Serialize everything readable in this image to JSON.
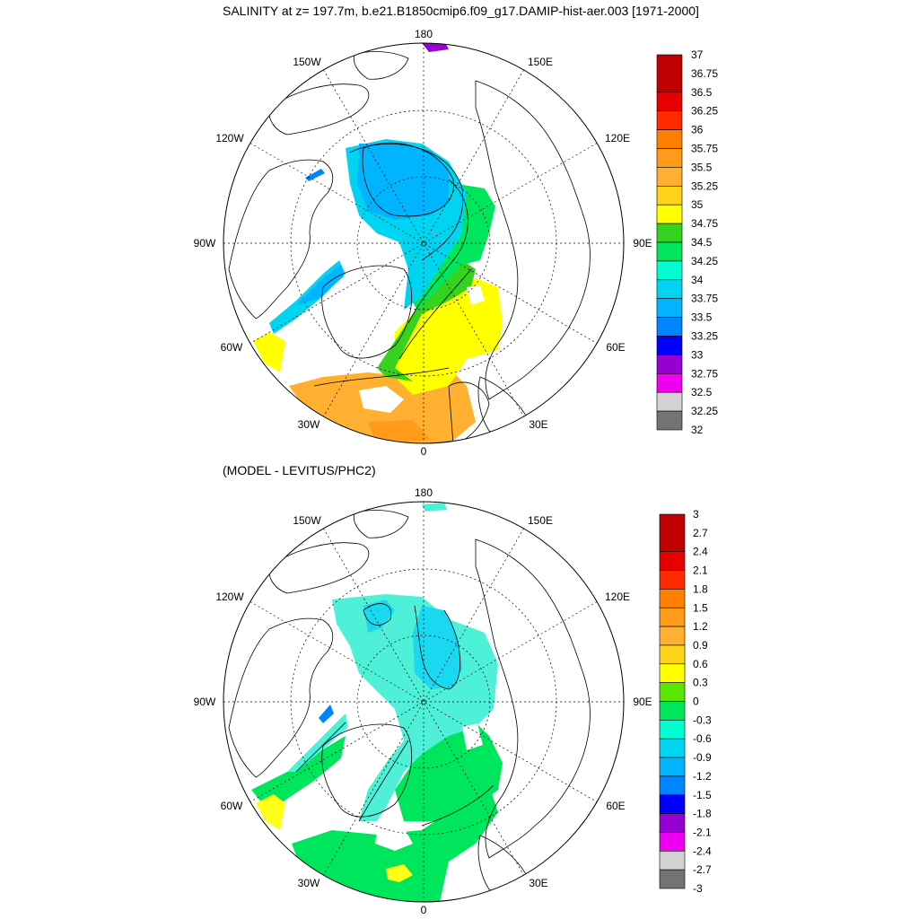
{
  "top_panel": {
    "title": "SALINITY at z= 197.7m, b.e21.B1850cmip6.f09_g17.DAMIP-hist-aer.003 [1971-2000]",
    "lon_labels": {
      "n": "180",
      "nw": "150W",
      "ne": "150E",
      "wnw": "120W",
      "ene": "120E",
      "w": "90W",
      "e": "90E",
      "wsw": "60W",
      "ese": "60E",
      "sw": "30W",
      "se": "30E",
      "s": "0"
    },
    "colorbar": {
      "labels": [
        "37",
        "36.75",
        "36.5",
        "36.25",
        "36",
        "35.75",
        "35.5",
        "35.25",
        "35",
        "34.75",
        "34.5",
        "34.25",
        "34",
        "33.75",
        "33.5",
        "33.25",
        "33",
        "32.75",
        "32.5",
        "32.25",
        "32"
      ],
      "colors": [
        "#c00000",
        "#e80000",
        "#ff2a00",
        "#ff8000",
        "#ff9a1a",
        "#ffb030",
        "#ffd21a",
        "#ffff00",
        "#37d11f",
        "#00e65c",
        "#00ffd0",
        "#00d4f0",
        "#00b4ff",
        "#0084ff",
        "#0000ff",
        "#9600d2",
        "#f000f0",
        "#d2d2d2",
        "#737373"
      ]
    }
  },
  "bottom_panel": {
    "title": "(MODEL - LEVITUS/PHC2)",
    "lon_labels": {
      "n": "180",
      "nw": "150W",
      "ne": "150E",
      "wnw": "120W",
      "ene": "120E",
      "w": "90W",
      "e": "90E",
      "wsw": "60W",
      "ese": "60E",
      "sw": "30W",
      "se": "30E",
      "s": "0"
    },
    "colorbar": {
      "labels": [
        "3",
        "2.7",
        "2.4",
        "2.1",
        "1.8",
        "1.5",
        "1.2",
        "0.9",
        "0.6",
        "0.3",
        "0",
        "-0.3",
        "-0.6",
        "-0.9",
        "-1.2",
        "-1.5",
        "-1.8",
        "-2.1",
        "-2.4",
        "-2.7",
        "-3"
      ],
      "colors": [
        "#c00000",
        "#e80000",
        "#ff2a00",
        "#ff8000",
        "#ff9a1a",
        "#ffb030",
        "#ffd21a",
        "#ffff00",
        "#59e600",
        "#00e65c",
        "#00ffd0",
        "#00d4f0",
        "#00b4ff",
        "#0084ff",
        "#0000ff",
        "#9600d2",
        "#f000f0",
        "#d2d2d2",
        "#737373"
      ]
    },
    "fill_colors": {
      "zero_band": "#00e65c",
      "neg_small": "#4ff0d8",
      "neg_mid": "#1ad8f0",
      "pos_small": "#59e600",
      "yellow": "#ffff1a",
      "blue": "#0084ff"
    }
  },
  "top_fill_colors": {
    "fresh": "#00b4ff",
    "mid": "#00d4f0",
    "green": "#37d11f",
    "lgreen": "#00e65c",
    "yellow": "#ffff00",
    "orange": "#ffb030",
    "dorange": "#ff9a1a",
    "blue": "#0084ff",
    "purple": "#9600d2"
  }
}
